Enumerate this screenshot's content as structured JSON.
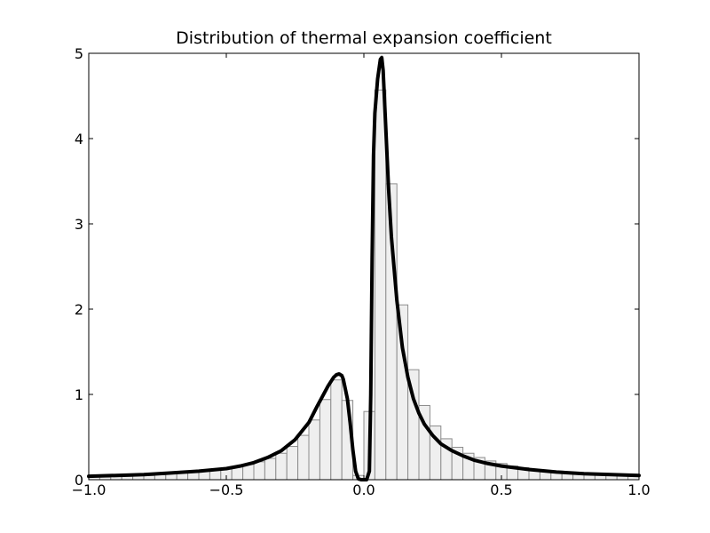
{
  "chart_data": {
    "type": "bar",
    "title": "Distribution of thermal expansion coefficient",
    "xlabel": "",
    "ylabel": "",
    "xlim": [
      -1.0,
      1.0
    ],
    "ylim": [
      0,
      5
    ],
    "grid": false,
    "x_ticks": [
      -1.0,
      -0.5,
      0.0,
      0.5,
      1.0
    ],
    "x_tick_labels": [
      "−1.0",
      "−0.5",
      "0.0",
      "0.5",
      "1.0"
    ],
    "y_ticks": [
      0,
      1,
      2,
      3,
      4,
      5
    ],
    "y_tick_labels": [
      "0",
      "1",
      "2",
      "3",
      "4",
      "5"
    ],
    "colors": {
      "bar_fill": "#efefef",
      "bar_edge": "#8c8c8c",
      "curve": "#000000"
    },
    "histogram": {
      "bin_edges": [
        -1.0,
        -0.96,
        -0.92,
        -0.88,
        -0.84,
        -0.8,
        -0.76,
        -0.72,
        -0.68,
        -0.64,
        -0.6,
        -0.56,
        -0.52,
        -0.48,
        -0.44,
        -0.4,
        -0.36,
        -0.32,
        -0.28,
        -0.24,
        -0.2,
        -0.16,
        -0.12,
        -0.08,
        -0.04,
        0.0,
        0.04,
        0.08,
        0.12,
        0.16,
        0.2,
        0.24,
        0.28,
        0.32,
        0.36,
        0.4,
        0.44,
        0.48,
        0.52,
        0.56,
        0.6,
        0.64,
        0.68,
        0.72,
        0.76,
        0.8,
        0.84,
        0.88,
        0.92,
        0.96,
        1.0
      ],
      "values": [
        0.03,
        0.03,
        0.04,
        0.04,
        0.05,
        0.05,
        0.06,
        0.07,
        0.08,
        0.09,
        0.1,
        0.12,
        0.13,
        0.15,
        0.18,
        0.21,
        0.25,
        0.31,
        0.39,
        0.52,
        0.7,
        0.94,
        1.17,
        0.93,
        0.05,
        0.8,
        4.57,
        3.47,
        2.05,
        1.29,
        0.87,
        0.63,
        0.48,
        0.38,
        0.31,
        0.26,
        0.22,
        0.19,
        0.16,
        0.14,
        0.12,
        0.11,
        0.1,
        0.09,
        0.08,
        0.07,
        0.06,
        0.06,
        0.05,
        0.05
      ]
    },
    "series": [
      {
        "type": "line",
        "x": [
          -1.0,
          -0.9,
          -0.8,
          -0.7,
          -0.6,
          -0.5,
          -0.45,
          -0.4,
          -0.35,
          -0.3,
          -0.25,
          -0.2,
          -0.17,
          -0.15,
          -0.13,
          -0.11,
          -0.1,
          -0.09,
          -0.08,
          -0.075,
          -0.06,
          -0.05,
          -0.04,
          -0.03,
          -0.02,
          -0.01,
          0.0,
          0.01,
          0.02,
          0.025,
          0.03,
          0.035,
          0.04,
          0.05,
          0.06,
          0.065,
          0.07,
          0.08,
          0.09,
          0.1,
          0.12,
          0.14,
          0.16,
          0.18,
          0.2,
          0.22,
          0.25,
          0.28,
          0.32,
          0.36,
          0.4,
          0.45,
          0.5,
          0.6,
          0.7,
          0.8,
          0.9,
          1.0
        ],
        "y": [
          0.04,
          0.05,
          0.06,
          0.08,
          0.1,
          0.13,
          0.16,
          0.2,
          0.26,
          0.34,
          0.47,
          0.67,
          0.86,
          0.98,
          1.1,
          1.2,
          1.23,
          1.24,
          1.22,
          1.18,
          0.95,
          0.67,
          0.35,
          0.1,
          0.01,
          0.0,
          0.0,
          0.0,
          0.1,
          1.0,
          2.6,
          3.8,
          4.3,
          4.7,
          4.93,
          4.95,
          4.8,
          4.1,
          3.4,
          2.85,
          2.1,
          1.55,
          1.2,
          0.95,
          0.78,
          0.65,
          0.52,
          0.42,
          0.34,
          0.28,
          0.23,
          0.19,
          0.16,
          0.12,
          0.09,
          0.07,
          0.06,
          0.05
        ]
      }
    ]
  }
}
